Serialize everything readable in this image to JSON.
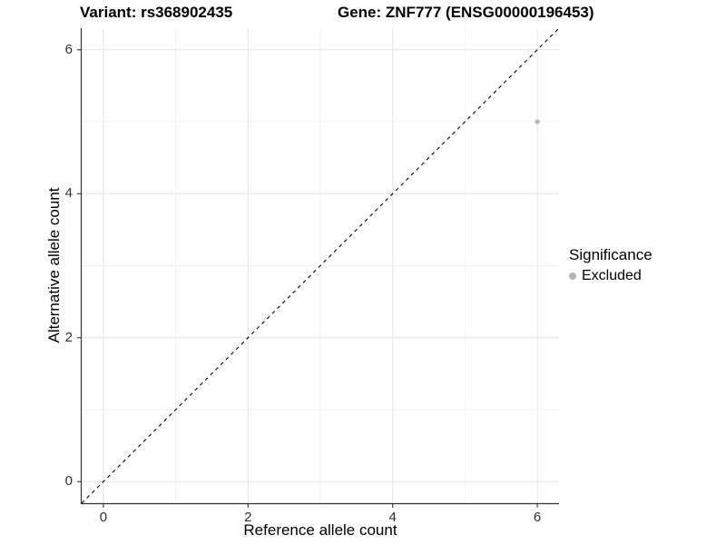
{
  "chart_data": {
    "type": "scatter",
    "titles": {
      "left": "Variant: rs368902435",
      "right": "Gene: ZNF777 (ENSG00000196453)"
    },
    "xlabel": "Reference allele count",
    "ylabel": "Alternative allele count",
    "xlim": [
      -0.3,
      6.3
    ],
    "ylim": [
      -0.3,
      6.3
    ],
    "x_ticks": [
      0,
      2,
      4,
      6
    ],
    "y_ticks": [
      0,
      2,
      4,
      6
    ],
    "x_minor_ticks": [
      1,
      3,
      5
    ],
    "y_minor_ticks": [
      1,
      3,
      5
    ],
    "grid": true,
    "reference_line": {
      "type": "identity y=x",
      "style": "dashed",
      "color": "#000000"
    },
    "series": [
      {
        "name": "Excluded",
        "points": [
          {
            "x": 6,
            "y": 5
          }
        ]
      }
    ],
    "legend": {
      "title": "Significance",
      "position": "right",
      "entries": [
        {
          "label": "Excluded",
          "color": "#b5b5b5"
        }
      ]
    },
    "colors": {
      "point": "#b5b5b5",
      "grid_major": "#e6e6e6",
      "grid_minor": "#f2f2f2",
      "axis": "#333333",
      "tick_label": "#303030",
      "background": "#ffffff"
    }
  }
}
